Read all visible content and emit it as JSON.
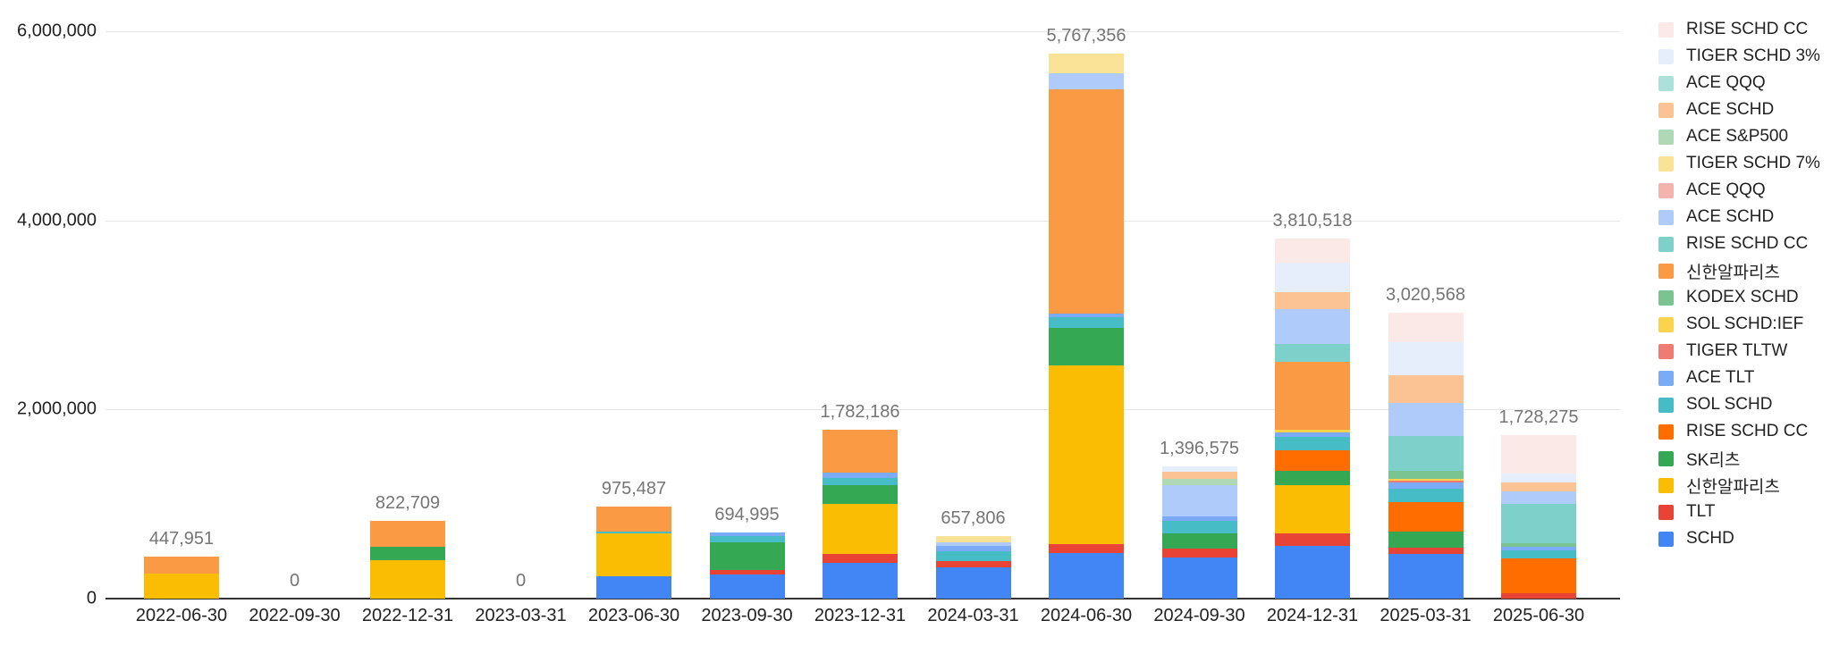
{
  "chart_data": {
    "type": "bar",
    "stacked": true,
    "title": "",
    "xlabel": "",
    "ylabel": "",
    "ylim": [
      0,
      6000000
    ],
    "grid": true,
    "legend_position": "right",
    "yticks": [
      {
        "value": 0,
        "label": "0"
      },
      {
        "value": 2000000,
        "label": "2,000,000"
      },
      {
        "value": 4000000,
        "label": "4,000,000"
      },
      {
        "value": 6000000,
        "label": "6,000,000"
      }
    ],
    "categories": [
      "2022-06-30",
      "2022-09-30",
      "2022-12-31",
      "2023-03-31",
      "2023-06-30",
      "2023-09-30",
      "2023-12-31",
      "2024-03-31",
      "2024-06-30",
      "2024-09-30",
      "2024-12-31",
      "2025-03-31",
      "2025-06-30"
    ],
    "totals": [
      447951,
      0,
      822709,
      0,
      975487,
      694995,
      1782186,
      657806,
      5767356,
      1396575,
      3810518,
      3020568,
      1728275
    ],
    "total_labels": [
      "447,951",
      "0",
      "822,709",
      "0",
      "975,487",
      "694,995",
      "1,782,186",
      "657,806",
      "5,767,356",
      "1,396,575",
      "3,810,518",
      "3,020,568",
      "1,728,275"
    ],
    "series_note": "series listed bottom-to-top of stack; legend displays them top-to-bottom reversed",
    "series": [
      {
        "name": "SCHD",
        "color": "#4285F4",
        "values": [
          0,
          0,
          0,
          0,
          240000,
          255000,
          375000,
          332000,
          480000,
          435000,
          560000,
          476000,
          0
        ]
      },
      {
        "name": "TLT",
        "color": "#E94335",
        "values": [
          0,
          0,
          0,
          0,
          0,
          48000,
          95000,
          66000,
          95000,
          95000,
          128000,
          59000,
          58000
        ]
      },
      {
        "name": "신한알파리츠",
        "color": "#FBBC04",
        "values": [
          260000,
          0,
          410000,
          0,
          450000,
          0,
          530000,
          0,
          1890000,
          0,
          511000,
          0,
          0
        ]
      },
      {
        "name": "SK리츠",
        "color": "#34A853",
        "values": [
          0,
          0,
          135000,
          0,
          0,
          290000,
          200000,
          0,
          400000,
          160000,
          148000,
          175000,
          0
        ]
      },
      {
        "name": "RISE SCHD CC",
        "color": "#FF6D01",
        "values": [
          0,
          0,
          0,
          0,
          0,
          0,
          0,
          0,
          0,
          0,
          226000,
          311000,
          367000
        ]
      },
      {
        "name": "SOL SCHD",
        "color": "#46BDC6",
        "values": [
          0,
          0,
          0,
          0,
          20000,
          65000,
          77000,
          104000,
          115000,
          133000,
          137000,
          146000,
          87000
        ]
      },
      {
        "name": "ACE TLT",
        "color": "#7BAAF7",
        "values": [
          0,
          0,
          0,
          0,
          0,
          36995,
          58000,
          57000,
          30000,
          47000,
          49000,
          59000,
          39000
        ]
      },
      {
        "name": "TIGER TLTW",
        "color": "#F07B72",
        "values": [
          0,
          0,
          0,
          0,
          0,
          0,
          0,
          0,
          0,
          0,
          0,
          20000,
          0
        ]
      },
      {
        "name": "SOL SCHD:IEF",
        "color": "#FBD34D",
        "values": [
          0,
          0,
          0,
          0,
          0,
          0,
          0,
          0,
          0,
          0,
          29000,
          20000,
          0
        ]
      },
      {
        "name": "KODEX SCHD",
        "color": "#7AC492",
        "values": [
          0,
          0,
          0,
          0,
          0,
          0,
          0,
          0,
          0,
          0,
          0,
          88000,
          39000
        ]
      },
      {
        "name": "신한알파리츠",
        "color": "#FA9A45",
        "values": [
          187951,
          0,
          277709,
          0,
          265487,
          0,
          447186,
          0,
          2380000,
          0,
          717000,
          0,
          0
        ]
      },
      {
        "name": "RISE SCHD CC",
        "color": "#7ED1CA",
        "values": [
          0,
          0,
          0,
          0,
          0,
          0,
          0,
          0,
          0,
          0,
          186000,
          370000,
          415000
        ]
      },
      {
        "name": "ACE SCHD",
        "color": "#AECBFA",
        "values": [
          0,
          0,
          0,
          0,
          0,
          0,
          0,
          38000,
          165000,
          335000,
          374000,
          350000,
          126000
        ]
      },
      {
        "name": "ACE QQQ",
        "color": "#F5B3AE",
        "values": [
          0,
          0,
          0,
          0,
          0,
          0,
          0,
          0,
          0,
          0,
          0,
          0,
          0
        ]
      },
      {
        "name": "TIGER SCHD 7%",
        "color": "#FAE296",
        "values": [
          0,
          0,
          0,
          0,
          0,
          0,
          0,
          60806,
          212356,
          0,
          0,
          0,
          0
        ]
      },
      {
        "name": "ACE S&P500",
        "color": "#AED8B6",
        "values": [
          0,
          0,
          0,
          0,
          0,
          0,
          0,
          0,
          0,
          57000,
          0,
          0,
          0
        ]
      },
      {
        "name": "ACE SCHD",
        "color": "#FBC394",
        "values": [
          0,
          0,
          0,
          0,
          0,
          0,
          0,
          0,
          0,
          76000,
          177000,
          292000,
          96000
        ]
      },
      {
        "name": "ACE QQQ",
        "color": "#ABE0DB",
        "values": [
          0,
          0,
          0,
          0,
          0,
          0,
          0,
          0,
          0,
          0,
          0,
          0,
          0
        ]
      },
      {
        "name": "TIGER SCHD 3%",
        "color": "#E7EEFB",
        "values": [
          0,
          0,
          0,
          0,
          0,
          0,
          0,
          0,
          0,
          58575,
          314000,
          350000,
          96000
        ]
      },
      {
        "name": "RISE SCHD CC",
        "color": "#FBE9E7",
        "values": [
          0,
          0,
          0,
          0,
          0,
          0,
          0,
          0,
          0,
          0,
          254518,
          304568,
          405275
        ]
      }
    ]
  }
}
